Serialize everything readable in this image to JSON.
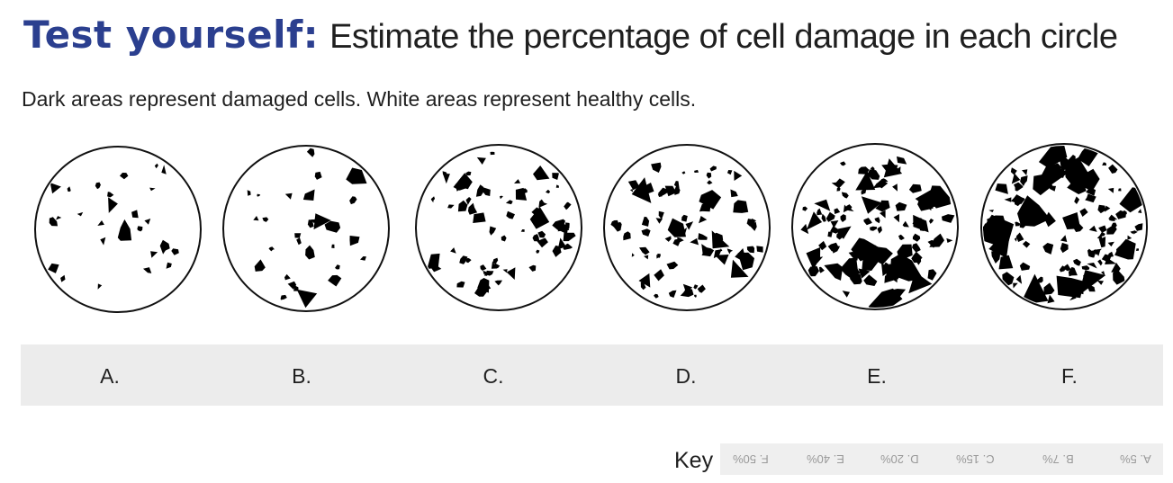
{
  "header": {
    "accent": "Test yourself:",
    "title": "Estimate the percentage of cell damage in each circle"
  },
  "subtitle": "Dark areas represent damaged cells. White areas represent healthy cells.",
  "samples": [
    {
      "label": "A.",
      "damage_fraction": 0.05
    },
    {
      "label": "B.",
      "damage_fraction": 0.07
    },
    {
      "label": "C.",
      "damage_fraction": 0.15
    },
    {
      "label": "D.",
      "damage_fraction": 0.2
    },
    {
      "label": "E.",
      "damage_fraction": 0.4
    },
    {
      "label": "F.",
      "damage_fraction": 0.5
    }
  ],
  "key": {
    "label": "Key",
    "answers": [
      "F. 50%",
      "E. 40%",
      "D. 20%",
      "C. 15%",
      "B. 7%",
      "A. 5%"
    ]
  },
  "colors": {
    "accent": "#2b3f8f",
    "damage": "#000000",
    "band": "#ececec"
  }
}
